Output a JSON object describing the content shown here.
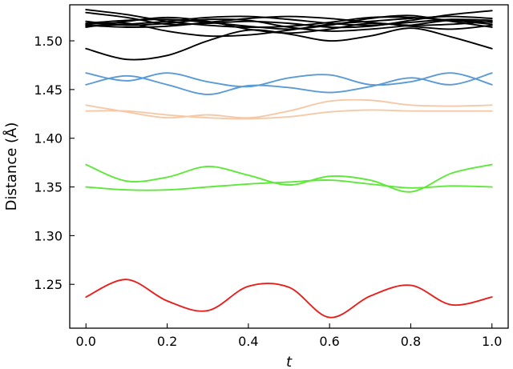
{
  "chart_data": {
    "type": "line",
    "title": "",
    "xlabel": "t",
    "ylabel": "Distance (Å)",
    "xlim": [
      -0.04,
      1.04
    ],
    "ylim": [
      1.205,
      1.537
    ],
    "xticks": [
      0.0,
      0.2,
      0.4,
      0.6,
      0.8,
      1.0
    ],
    "xtick_labels": [
      "0.0",
      "0.2",
      "0.4",
      "0.6",
      "0.8",
      "1.0"
    ],
    "yticks": [
      1.25,
      1.3,
      1.35,
      1.4,
      1.45,
      1.5
    ],
    "ytick_labels": [
      "1.25",
      "1.30",
      "1.35",
      "1.40",
      "1.45",
      "1.50"
    ],
    "grid": false,
    "legend": "none",
    "x": [
      0.0,
      0.1,
      0.2,
      0.3,
      0.4,
      0.5,
      0.6,
      0.7,
      0.8,
      0.9,
      1.0
    ],
    "series": [
      {
        "color": "#000000",
        "values": [
          1.532,
          1.527,
          1.52,
          1.516,
          1.514,
          1.515,
          1.519,
          1.524,
          1.524,
          1.521,
          1.517
        ]
      },
      {
        "color": "#000000",
        "values": [
          1.529,
          1.524,
          1.517,
          1.518,
          1.52,
          1.518,
          1.514,
          1.515,
          1.521,
          1.527,
          1.531
        ]
      },
      {
        "color": "#000000",
        "values": [
          1.52,
          1.516,
          1.518,
          1.522,
          1.521,
          1.514,
          1.51,
          1.512,
          1.516,
          1.521,
          1.519
        ]
      },
      {
        "color": "#000000",
        "values": [
          1.518,
          1.521,
          1.522,
          1.519,
          1.515,
          1.512,
          1.516,
          1.523,
          1.526,
          1.52,
          1.514
        ]
      },
      {
        "color": "#000000",
        "values": [
          1.516,
          1.514,
          1.515,
          1.519,
          1.523,
          1.525,
          1.523,
          1.519,
          1.516,
          1.517,
          1.52
        ]
      },
      {
        "color": "#000000",
        "values": [
          1.515,
          1.517,
          1.52,
          1.524,
          1.525,
          1.522,
          1.518,
          1.516,
          1.519,
          1.522,
          1.521
        ]
      },
      {
        "color": "#000000",
        "values": [
          1.514,
          1.52,
          1.524,
          1.52,
          1.512,
          1.508,
          1.512,
          1.518,
          1.515,
          1.512,
          1.516
        ]
      },
      {
        "color": "#000000",
        "values": [
          1.517,
          1.518,
          1.51,
          1.505,
          1.506,
          1.511,
          1.517,
          1.52,
          1.523,
          1.525,
          1.523
        ]
      },
      {
        "color": "#000000",
        "values": [
          1.492,
          1.481,
          1.485,
          1.5,
          1.511,
          1.507,
          1.5,
          1.505,
          1.513,
          1.504,
          1.492
        ]
      },
      {
        "color": "#5b9bd5",
        "values": [
          1.467,
          1.459,
          1.467,
          1.458,
          1.453,
          1.462,
          1.465,
          1.455,
          1.458,
          1.467,
          1.455
        ]
      },
      {
        "color": "#5b9bd5",
        "values": [
          1.455,
          1.464,
          1.455,
          1.445,
          1.454,
          1.452,
          1.447,
          1.453,
          1.462,
          1.455,
          1.467
        ]
      },
      {
        "color": "#f5c9a8",
        "values": [
          1.434,
          1.427,
          1.421,
          1.424,
          1.421,
          1.428,
          1.438,
          1.439,
          1.434,
          1.433,
          1.434
        ]
      },
      {
        "color": "#f5c9a8",
        "values": [
          1.428,
          1.428,
          1.424,
          1.421,
          1.42,
          1.422,
          1.427,
          1.429,
          1.428,
          1.428,
          1.428
        ]
      },
      {
        "color": "#5ee83a",
        "values": [
          1.373,
          1.356,
          1.36,
          1.371,
          1.362,
          1.352,
          1.361,
          1.357,
          1.345,
          1.364,
          1.373
        ]
      },
      {
        "color": "#5ee83a",
        "values": [
          1.35,
          1.347,
          1.347,
          1.35,
          1.353,
          1.355,
          1.357,
          1.353,
          1.349,
          1.351,
          1.35
        ]
      },
      {
        "color": "#e8201c",
        "values": [
          1.237,
          1.255,
          1.233,
          1.223,
          1.248,
          1.247,
          1.216,
          1.238,
          1.249,
          1.229,
          1.237
        ]
      }
    ]
  }
}
